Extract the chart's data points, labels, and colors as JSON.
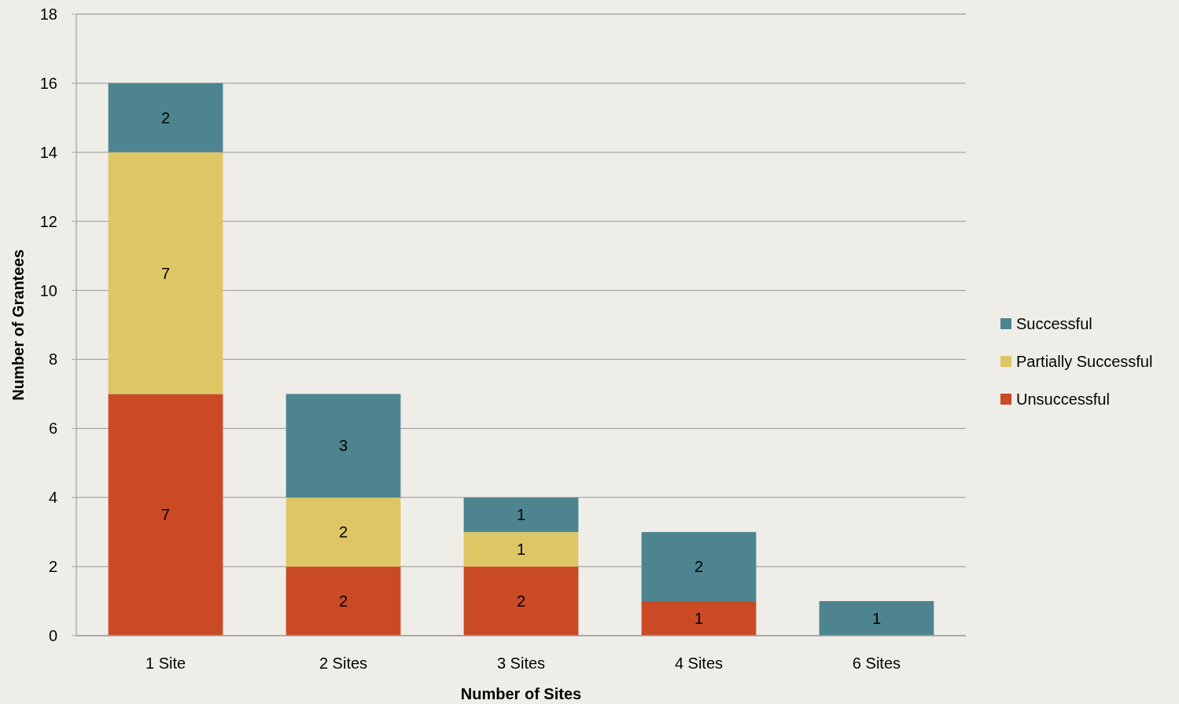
{
  "chart_data": {
    "type": "bar",
    "stacked": true,
    "xlabel": "Number of Sites",
    "ylabel": "Number of Grantees",
    "categories": [
      "1 Site",
      "2 Sites",
      "3 Sites",
      "4 Sites",
      "6 Sites"
    ],
    "series": [
      {
        "name": "Unsuccessful",
        "color": "#cb4a26",
        "values": [
          7,
          2,
          2,
          1,
          0
        ],
        "value_labels": [
          "7",
          "2",
          "2",
          "1",
          null
        ]
      },
      {
        "name": "Partially Successful",
        "color": "#dec665",
        "values": [
          7,
          2,
          1,
          0,
          0
        ],
        "value_labels": [
          "7",
          "2",
          "1",
          null,
          null
        ]
      },
      {
        "name": "Successful",
        "color": "#4e8490",
        "values": [
          2,
          3,
          1,
          2,
          1
        ],
        "value_labels": [
          "2",
          "3",
          "1",
          "2",
          "1"
        ]
      }
    ],
    "ylim": [
      0,
      18
    ],
    "yticks": [
      0,
      2,
      4,
      6,
      8,
      10,
      12,
      14,
      16,
      18
    ],
    "grid": "y",
    "legend": "right"
  }
}
